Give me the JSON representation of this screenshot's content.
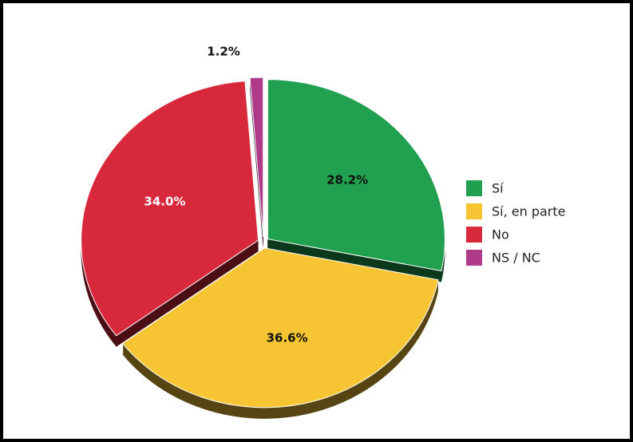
{
  "chart_data": {
    "type": "pie",
    "categories": [
      "Sí",
      "Sí, en parte",
      "No",
      "NS / NC"
    ],
    "values": [
      28.2,
      36.6,
      34.0,
      1.2
    ],
    "value_labels": [
      "28.2%",
      "36.6%",
      "34.0%",
      "1.2%"
    ],
    "colors": [
      "#21a050",
      "#f7c533",
      "#d8283c",
      "#b03a8a"
    ],
    "legend": "right"
  }
}
